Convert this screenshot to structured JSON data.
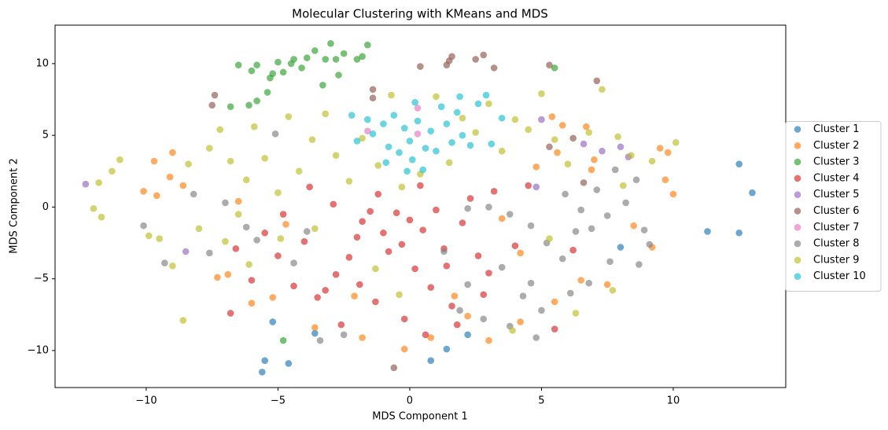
{
  "chart_data": {
    "type": "scatter",
    "title": "Molecular Clustering with KMeans and MDS",
    "x_label": "MDS Component 1",
    "y_label": "MDS Component 2",
    "xlim": [
      -13.46,
      14.27
    ],
    "ylim": [
      -12.58,
      12.68
    ],
    "xticks": [
      {
        "value": -10,
        "label": "−10"
      },
      {
        "value": -5,
        "label": "−5"
      },
      0,
      5,
      10
    ],
    "yticks": [
      {
        "value": -10,
        "label": "−10"
      },
      {
        "value": -5,
        "label": "−5"
      },
      0,
      5,
      10
    ],
    "legend": "right",
    "series": [
      {
        "name": "Cluster 1",
        "color": "#1f77b4",
        "x": [
          12.5,
          13,
          11.3,
          12.5,
          8,
          -5.5,
          -5.6,
          -4.6,
          -5.2,
          -3.6,
          0.8,
          1.4,
          2.2
        ],
        "values": [
          3.0,
          1.0,
          -1.7,
          -1.8,
          -2.8,
          -10.7,
          -11.5,
          -10.9,
          -8,
          -8.8,
          -10.7,
          -9.9,
          -8.9
        ]
      },
      {
        "name": "Cluster 2",
        "color": "#ff7f0e",
        "x": [
          -10.1,
          -9.6,
          -9.7,
          -9,
          -9.1,
          -7.3,
          -6.9,
          -6,
          -5.2,
          -3.6,
          -1.8,
          -0.2,
          0.8,
          2.2,
          3,
          4.2,
          5.5,
          6.5,
          7.5,
          8.5,
          9.2,
          9.7,
          10,
          9.5,
          9.8,
          6.9,
          7,
          5.6,
          5.8,
          6.7,
          5.4,
          4.8,
          4.2,
          3.5,
          -6.5,
          -4.7,
          -8.6,
          -2.1,
          1.7
        ],
        "values": [
          1.1,
          0.8,
          3.2,
          3.8,
          2.1,
          -4.9,
          -4.7,
          -6.7,
          -6.3,
          -8.4,
          -9.1,
          -9.9,
          -9.1,
          -7.6,
          -9.3,
          -8.0,
          -6.6,
          -5.1,
          -5.4,
          -1.3,
          -2.8,
          1.9,
          0.9,
          4.1,
          3.8,
          2.6,
          3.3,
          3.8,
          5.7,
          5.6,
          6.3,
          2.8,
          -3.2,
          -0.8,
          0.4,
          -1.2,
          1.5,
          -6.2,
          -6.2
        ]
      },
      {
        "name": "Cluster 3",
        "color": "#2ca02c",
        "x": [
          -6.8,
          -6.1,
          -5.8,
          -5.4,
          -6,
          -5.8,
          -5.3,
          -5.2,
          -4.8,
          -4.5,
          -4.4,
          -4.1,
          -3.9,
          -3.6,
          -3.2,
          -3.0,
          -2.8,
          -2.5,
          -2.0,
          -1.8,
          -1.6,
          -3.3,
          -5,
          -6.5,
          -4.8,
          5.5,
          -2.7
        ],
        "values": [
          7.0,
          7.1,
          7.4,
          8.0,
          9.5,
          9.9,
          9.0,
          9.3,
          9.4,
          10.0,
          10.3,
          9.7,
          10.4,
          10.9,
          10.3,
          11.4,
          10.3,
          10.7,
          10.3,
          10.5,
          11.3,
          8.5,
          10.1,
          9.9,
          -9.3,
          9.7,
          9.2
        ]
      },
      {
        "name": "Cluster 4",
        "color": "#d62728",
        "x": [
          -3.5,
          -3.2,
          -2.8,
          -2.3,
          -2,
          -1.8,
          -1.5,
          -1.2,
          -1,
          -0.8,
          -0.5,
          -0.3,
          0,
          0.2,
          0.5,
          0.8,
          1,
          1.3,
          1.6,
          2,
          2.3,
          2.6,
          3,
          3.2,
          -4,
          -4.4,
          -5,
          -5.5,
          -6,
          -6.8,
          -3.8,
          -2.6,
          -1.3,
          -0.2,
          0.6,
          1.8,
          4,
          4.5,
          5.5,
          -4.8,
          -2.9,
          0.4,
          1.4,
          -1.9,
          2.8,
          6.2,
          -6.6
        ],
        "values": [
          -6.3,
          -5.8,
          -4.7,
          -3.5,
          -2.1,
          -1,
          -0.3,
          0.9,
          -1.8,
          -3.1,
          -0.4,
          -2.6,
          -0.9,
          -4.3,
          -1.6,
          -5.6,
          -0.2,
          -2.9,
          -6.9,
          -1.1,
          0.6,
          -3.4,
          -4.6,
          1.1,
          -2.4,
          -5.5,
          -3.4,
          -1.8,
          -5.1,
          -7.4,
          1.4,
          -8.2,
          -6.6,
          -7.8,
          -8.9,
          -8.2,
          -2.7,
          1.5,
          -8.5,
          -0.5,
          0.2,
          1.5,
          -4.1,
          -5.4,
          -6.1,
          -3,
          -2.9
        ]
      },
      {
        "name": "Cluster 5",
        "color": "#9467bd",
        "x": [
          -12.3,
          -8.5,
          6.6,
          7.3,
          8,
          4.8,
          8.3,
          5
        ],
        "values": [
          1.6,
          -3.1,
          4.4,
          3.9,
          4.2,
          1.4,
          3.5,
          6.1
        ]
      },
      {
        "name": "Cluster 6",
        "color": "#8c564b",
        "x": [
          -7.5,
          -7.4,
          -1.4,
          -1.4,
          0.4,
          1.5,
          1.6,
          1.4,
          2.5,
          2.8,
          3.2,
          5.3,
          7.1,
          -0.6,
          6.2,
          5.3,
          6.6
        ],
        "values": [
          7.1,
          7.8,
          8.2,
          7.6,
          9.8,
          10.2,
          10.5,
          9.9,
          10.3,
          10.6,
          9.7,
          9.9,
          8.8,
          -11.2,
          4.8,
          4.2,
          1.7
        ]
      },
      {
        "name": "Cluster 7",
        "color": "#e377c2",
        "x": [
          0.3,
          -1.6,
          0.3
        ],
        "values": [
          6.9,
          5.3,
          5.1
        ]
      },
      {
        "name": "Cluster 8",
        "color": "#7f7f7f",
        "x": [
          2.2,
          3,
          3.8,
          4.6,
          5.2,
          5.8,
          6.3,
          6.9,
          7.5,
          8.2,
          8.9,
          9.1,
          8.7,
          7.6,
          6.8,
          6.1,
          5,
          4.3,
          3.5,
          2.8,
          3.8,
          4.8,
          2.2,
          1.3,
          7.1,
          7.8,
          8.6,
          -10.1,
          -9.3,
          -7.6,
          -6.2,
          -5.8,
          -4.4,
          -3.4,
          -2.5,
          -5.1,
          -7,
          -3.9,
          4.6,
          5.9,
          -8.2,
          1.9,
          6.5
        ],
        "values": [
          -0.1,
          0,
          -0.5,
          -1.3,
          -2.5,
          -3.6,
          -1.7,
          -1.5,
          -0.6,
          0.3,
          -1.6,
          -2.6,
          -4,
          -3.8,
          -5.3,
          -6.0,
          -7.2,
          -6.2,
          -4.2,
          -7.8,
          -8.3,
          -9.1,
          -5.4,
          -3.1,
          1.2,
          2.6,
          1.9,
          -1.3,
          -3.9,
          -3.2,
          -1.4,
          -2.3,
          -3.9,
          -9.3,
          -8.9,
          5.1,
          0.3,
          -1.7,
          -5.3,
          0.9,
          0.9,
          -7.2,
          -0.2
        ]
      },
      {
        "name": "Cluster 9",
        "color": "#bcbd22",
        "x": [
          -12,
          -11.7,
          -11.3,
          -11,
          -11.8,
          -9.9,
          -9.5,
          -8.6,
          -8.4,
          -8,
          -7.6,
          -7.2,
          -6.8,
          -6.5,
          -6.2,
          -5.9,
          -5.5,
          -5,
          -4.6,
          -4.2,
          -3.7,
          -3.2,
          -2.8,
          -2.3,
          -1.8,
          -1.2,
          -0.7,
          -0.3,
          0.4,
          1,
          1.5,
          2,
          2.5,
          3,
          3.5,
          4,
          4.5,
          5,
          5.5,
          6,
          6.8,
          7.3,
          7.9,
          8.4,
          9.2,
          10.1,
          8.1,
          5.3,
          7.7,
          6.3,
          -0.4,
          -4.9,
          -7,
          -9,
          -6.1,
          3.9,
          -1.3,
          -3.6
        ],
        "values": [
          -0.1,
          -0.7,
          2.5,
          3.3,
          1.7,
          -2,
          -2.2,
          -7.9,
          3,
          -1.5,
          4.1,
          5.4,
          3.2,
          -0.5,
          1.9,
          5.6,
          3.4,
          1,
          6.3,
          2.5,
          4.7,
          6.5,
          3.6,
          1.8,
          4.8,
          2.9,
          7.8,
          1.4,
          2.3,
          7.7,
          3.1,
          6.2,
          5.2,
          7.2,
          3.9,
          6.1,
          5.4,
          7.9,
          4.7,
          3.0,
          5.2,
          8.2,
          4.9,
          3.6,
          3.2,
          4.5,
          1.5,
          -2.2,
          -5.8,
          -7.4,
          -6.1,
          -2.2,
          -2.4,
          -4.1,
          -4,
          -8.6,
          -4.3,
          -1.5
        ]
      },
      {
        "name": "Cluster 10",
        "color": "#17becf",
        "x": [
          -2.2,
          -1.6,
          -1.4,
          -1.0,
          -0.8,
          -0.6,
          -0.4,
          -0.2,
          0,
          0.1,
          0.3,
          0.5,
          0.6,
          0.8,
          1.0,
          1.2,
          1.4,
          1.6,
          1.8,
          2.0,
          2.3,
          2.6,
          2.9,
          3.1,
          3.5,
          -0.9,
          0.2,
          1.9,
          -2.0,
          -0.1
        ],
        "values": [
          6.4,
          6.1,
          5.1,
          5.8,
          4.2,
          6.4,
          3.8,
          5.5,
          4.6,
          3.3,
          6.0,
          2.6,
          4.1,
          5.3,
          3.9,
          7.0,
          5.8,
          4.5,
          6.6,
          5.0,
          4.3,
          7.2,
          7.8,
          4.4,
          6.2,
          3.1,
          7.3,
          7.7,
          4.6,
          2.5
        ]
      }
    ]
  }
}
